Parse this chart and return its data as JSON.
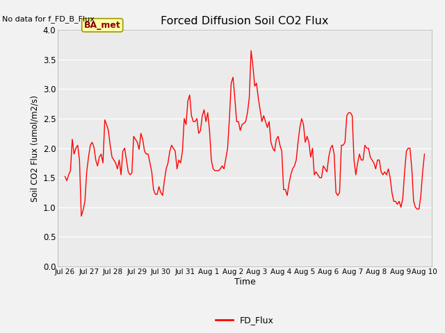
{
  "title": "Forced Diffusion Soil CO2 Flux",
  "xlabel": "Time",
  "ylabel_str": "Soil CO2 Flux (umol/m2/s)",
  "ylim": [
    0.0,
    4.0
  ],
  "yticks": [
    0.0,
    0.5,
    1.0,
    1.5,
    2.0,
    2.5,
    3.0,
    3.5,
    4.0
  ],
  "line_color": "#FF0000",
  "line_width": 1.0,
  "bg_color": "#EBEBEB",
  "fig_color": "#F2F2F2",
  "no_data_text": "No data for f_FD_B_Flux",
  "ba_met_label": "BA_met",
  "legend_label": "FD_Flux",
  "tick_labels": [
    "Jul 26",
    "Jul 27",
    "Jul 28",
    "Jul 29",
    "Jul 30",
    "Jul 31",
    "Aug 1",
    "Aug 2",
    "Aug 3",
    "Aug 4",
    "Aug 5",
    "Aug 6",
    "Aug 7",
    "Aug 8",
    "Aug 9",
    "Aug 10"
  ],
  "y_data": [
    1.52,
    1.45,
    1.55,
    1.62,
    2.15,
    1.9,
    2.0,
    2.05,
    1.8,
    0.85,
    0.95,
    1.1,
    1.6,
    1.85,
    2.05,
    2.1,
    2.02,
    1.8,
    1.7,
    1.85,
    1.9,
    1.75,
    2.48,
    2.4,
    2.3,
    2.05,
    1.85,
    1.8,
    1.75,
    1.65,
    1.8,
    1.55,
    1.95,
    2.0,
    1.8,
    1.6,
    1.55,
    1.58,
    2.2,
    2.15,
    2.1,
    1.98,
    2.25,
    2.15,
    1.95,
    1.9,
    1.9,
    1.75,
    1.6,
    1.3,
    1.22,
    1.22,
    1.35,
    1.25,
    1.2,
    1.45,
    1.65,
    1.75,
    1.95,
    2.05,
    2.0,
    1.95,
    1.65,
    1.8,
    1.75,
    1.95,
    2.5,
    2.4,
    2.8,
    2.9,
    2.55,
    2.45,
    2.45,
    2.5,
    2.25,
    2.3,
    2.55,
    2.65,
    2.45,
    2.6,
    2.3,
    1.8,
    1.65,
    1.62,
    1.62,
    1.62,
    1.65,
    1.7,
    1.65,
    1.82,
    2.0,
    2.5,
    3.1,
    3.2,
    2.85,
    2.45,
    2.45,
    2.3,
    2.4,
    2.42,
    2.45,
    2.6,
    2.85,
    3.65,
    3.4,
    3.05,
    3.1,
    2.85,
    2.65,
    2.45,
    2.55,
    2.45,
    2.35,
    2.45,
    2.1,
    2.0,
    1.95,
    2.15,
    2.2,
    2.05,
    1.95,
    1.3,
    1.3,
    1.2,
    1.4,
    1.55,
    1.65,
    1.7,
    1.8,
    2.1,
    2.35,
    2.5,
    2.4,
    2.1,
    2.2,
    2.1,
    1.85,
    2.0,
    1.55,
    1.6,
    1.55,
    1.5,
    1.5,
    1.7,
    1.65,
    1.6,
    1.85,
    2.0,
    2.05,
    1.9,
    1.25,
    1.2,
    1.25,
    2.05,
    2.05,
    2.1,
    2.55,
    2.6,
    2.6,
    2.55,
    1.8,
    1.55,
    1.75,
    1.9,
    1.8,
    1.8,
    2.05,
    2.0,
    2.0,
    1.85,
    1.8,
    1.75,
    1.65,
    1.8,
    1.8,
    1.6,
    1.55,
    1.6,
    1.55,
    1.65,
    1.5,
    1.25,
    1.1,
    1.1,
    1.05,
    1.1,
    1.0,
    1.15,
    1.6,
    1.95,
    2.0,
    2.0,
    1.65,
    1.1,
    1.0,
    0.97,
    0.97,
    1.2,
    1.6,
    1.9
  ]
}
